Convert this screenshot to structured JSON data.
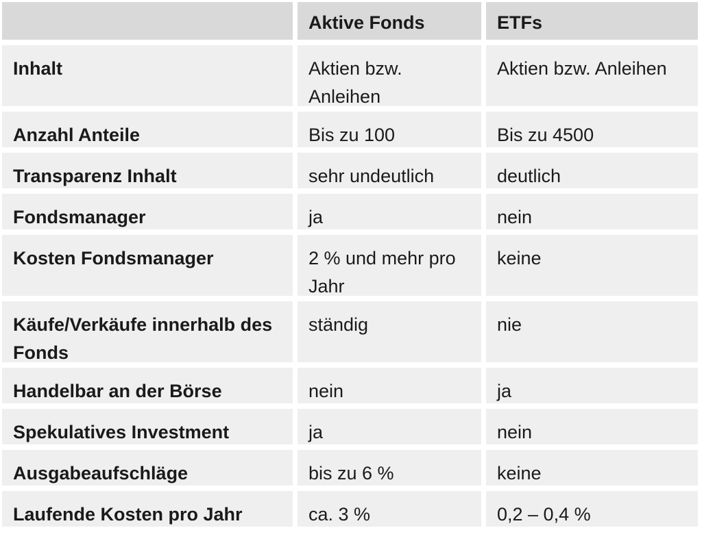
{
  "table": {
    "header": [
      "",
      "Aktive Fonds",
      "ETFs"
    ],
    "rows": [
      [
        "Inhalt",
        "Aktien bzw. Anleihen",
        "Aktien bzw. Anleihen"
      ],
      [
        "Anzahl Anteile",
        "Bis zu 100",
        "Bis zu 4500"
      ],
      [
        "Transparenz Inhalt",
        "sehr undeutlich",
        "deutlich"
      ],
      [
        "Fondsmanager",
        "ja",
        "nein"
      ],
      [
        "Kosten Fondsmanager",
        "2 % und mehr pro Jahr",
        "keine"
      ],
      [
        "Käufe/Verkäufe innerhalb des Fonds",
        "ständig",
        "nie"
      ],
      [
        "Handelbar an der Börse",
        "nein",
        "ja"
      ],
      [
        "Spekulatives Investment",
        "ja",
        "nein"
      ],
      [
        "Ausgabeaufschläge",
        "bis zu 6 %",
        "keine"
      ],
      [
        "Laufende Kosten pro Jahr",
        "ca. 3 %",
        "0,2 – 0,4 %"
      ]
    ]
  }
}
